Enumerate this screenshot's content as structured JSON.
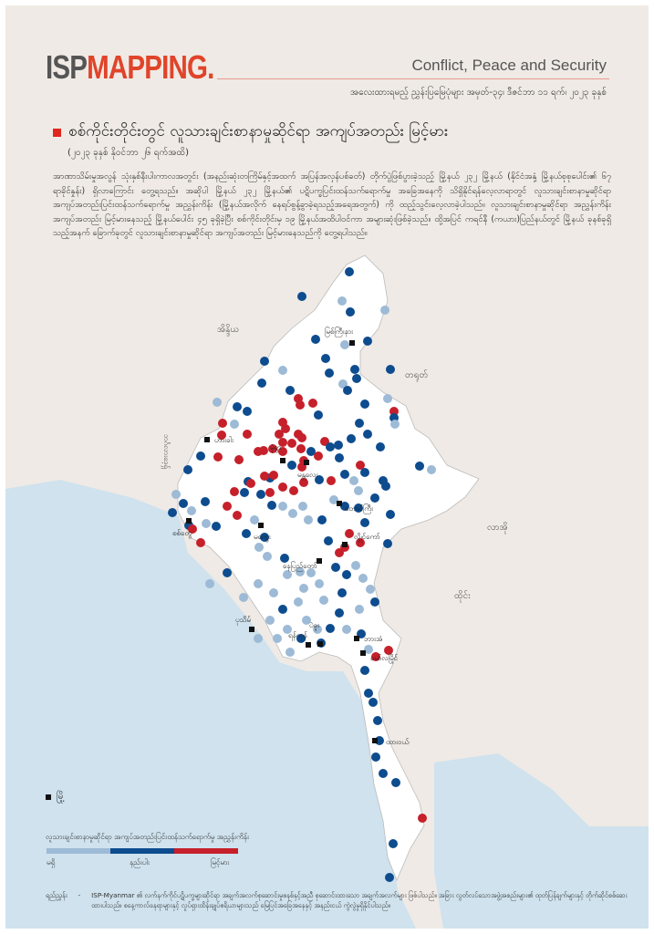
{
  "header": {
    "logo_left": "ISP",
    "logo_right": "MAPPING",
    "logo_dot": ".",
    "tagline": "Conflict, Peace and Security",
    "issue": "အလေးထားရမည့် ညွှန်းပြမြေပုံများ အမှတ်-၃၄၊ ဒီဇင်ဘာ ၁၁ ရက်၊ ၂၀၂၃ ခုနှစ်"
  },
  "title": "စစ်ကိုင်းတိုင်းတွင် လူသားချင်းစာနာမှုဆိုင်ရာ အကျပ်အတည်း မြင့်မား",
  "subtitle": "(၂၀၂၃ ခုနှစ် နိုဝင်ဘာ ၂၆ ရက်အထိ)",
  "paragraph": "အာဏာသိမ်းမှုအလွန် သုံးနှစ်နီးပါးကာလအတွင်း (အနည်းဆုံးတကြိမ်နှင့်အထက် အပြန်အလှန်ပစ်ခတ်) တိုက်ပွဲဖြစ်ပွားခဲ့သည့် မြို့နယ် ၂၃၂ မြို့နယ် (နိုင်ငံအနှံ့ မြို့နယ်စုစုပေါင်း၏ ၆၇ ရာခိုင်နှုန်း) ရှိလာကြောင်း တွေ့ရသည်။ အဆိုပါ မြို့နယ် ၂၃၂ မြို့နယ်၏ ပဋိပက္ခပြင်းထန်သက်ရောက်မှု အခြေအနေကို သိရှိနိုင်ရန်လေ့လာရာတွင် လူသားချင်းစာနာမှုဆိုင်ရာ အကျပ်အတည်းပြင်းထန်သက်ရောက်မှု အညွှန်းကိန်း (မြို့နယ်အလိုက် နေရပ်စွန့်ခွာခဲ့ရသည့်အရေအတွက်) ကို ထည့်သွင်းလေ့လာခဲ့ပါသည်။ လူသားချင်းစာနာမှုဆိုင်ရာ အညွှန်းကိန်း အကျပ်အတည်း မြင့်မားနေသည့် မြို့နယ်ပေါင်း ၄၅ ခုရှိခဲ့ပြီး စစ်ကိုင်းတိုင်းမှ ၁၉ မြို့နယ်အထိပါဝင်ကာ အများဆုံးဖြစ်ခဲ့သည်။ ထို့အပြင် ကရင်နီ (ကယား)ပြည်နယ်တွင် မြို့နယ် ခုနစ်ခုရှိသည့်အနက် ခြောက်ခုတွင် လူသားချင်းစာနာမှုဆိုင်ရာ အကျပ်အတည်း မြင့်မားနေသည်ကို တွေ့ရပါသည်။",
  "map": {
    "countries": [
      "အိန္ဒိယ",
      "တရုတ်",
      "ဘင်္ဂလားဒေ့ရှ်",
      "လာအို",
      "ထိုင်း"
    ],
    "cities": [
      "မြစ်ကြီးနား",
      "မုံရွာ",
      "ဟားခါး",
      "မန္တလေး",
      "တောင်ကြီး",
      "စစ်တွေ",
      "မကွေး",
      "နေပြည်တော်",
      "လွိုင်ကော်",
      "ပုသိမ်",
      "ရန်ကုန်",
      "ပဲခူး",
      "ဘားအံ",
      "မော်လမြိုင်",
      "ထားဝယ်"
    ]
  },
  "legend": {
    "city_label": "မြို့",
    "index_title": "လူသားချင်းစာနာမှုဆိုင်ရာ အကျပ်အတည်းပြင်းထန်သက်ရောက်မှု အညွှန်းကိန်း",
    "levels": [
      {
        "label": "မရှိ",
        "color": "#9dbad6"
      },
      {
        "label": "နည်းပါး",
        "color": "#0d4c8e"
      },
      {
        "label": "မြင့်မား",
        "color": "#c6202b"
      }
    ]
  },
  "source": {
    "label": "ရည်ညွှန်း",
    "dash": "-",
    "text": "ISP-Myanmar ၏ လက်နက်ကိုင်ပဋိပက္ခများဆိုင်ရာ အချက်အလက်စုဆောင်းမှုစနစ်နှင့်အညီ စုဆောင်းထားသော အချက်အလက်များ ဖြစ်ပါသည်။ အခြား လွတ်လပ်သောအဖွဲ့အစည်းများ၏ ထုတ်ပြန်ချက်များနှင့် တိုက်ဆိုင်စစ်ဆေးထားပါသည်။ စနေ့ကာလ်နေရာများနှင့် လှုပ်ရှားထိန်းချုပ်ဧရိယာများသည် မြေပြင်အခြေအနေနှင့် အနည်းငယ် ကွဲလွဲမှုရှိနိုင်ပါသည်။"
  }
}
